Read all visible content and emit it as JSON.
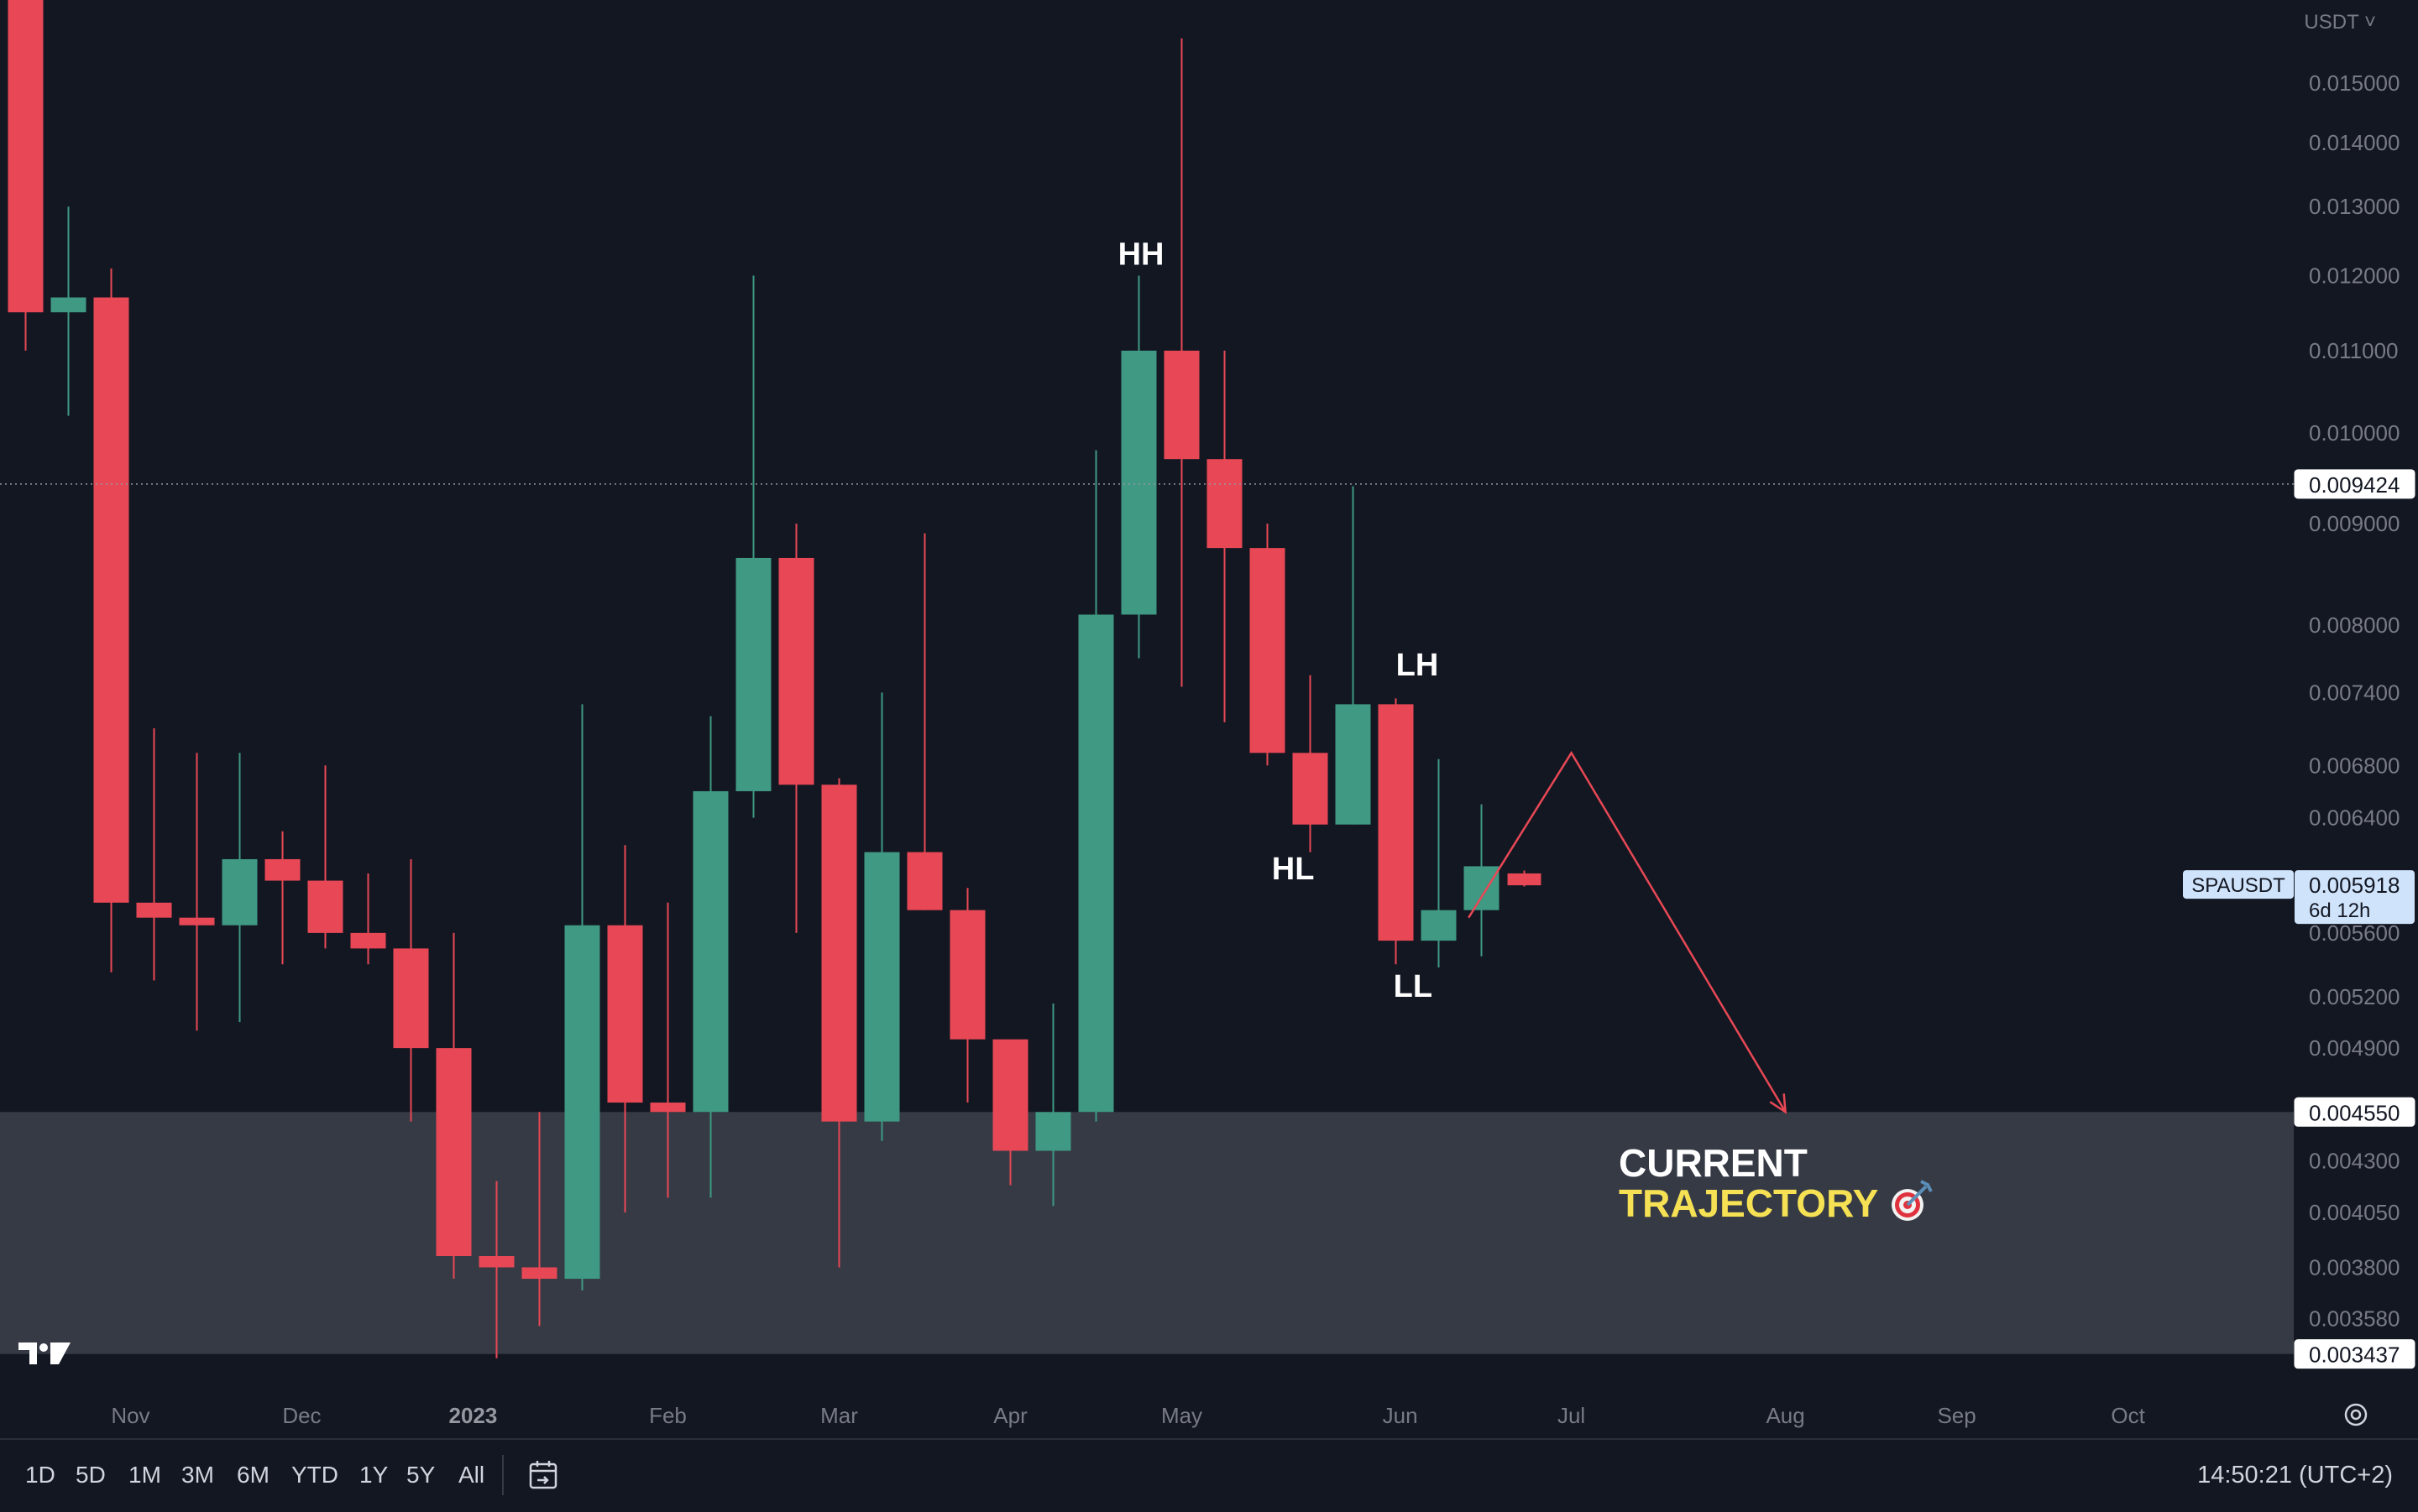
{
  "chart_data": {
    "type": "candlestick",
    "symbol": "SPAUSDT",
    "currency": "USDT",
    "timeframe": "1W",
    "y_scale": "log",
    "ylim": [
      0.00335,
      0.0162
    ],
    "y_ticks": [
      "0.015000",
      "0.014000",
      "0.013000",
      "0.012000",
      "0.011000",
      "0.010000",
      "0.009000",
      "0.008000",
      "0.007400",
      "0.006800",
      "0.006400",
      "0.005600",
      "0.005200",
      "0.004900",
      "0.004300",
      "0.004050",
      "0.003800",
      "0.003580"
    ],
    "x_ticks": [
      {
        "label": "Nov",
        "i": 2.45
      },
      {
        "label": "Dec",
        "i": 6.45
      },
      {
        "label": "2023",
        "i": 10.45,
        "bold": true
      },
      {
        "label": "Feb",
        "i": 15.0
      },
      {
        "label": "Mar",
        "i": 19.0
      },
      {
        "label": "Apr",
        "i": 23.0
      },
      {
        "label": "May",
        "i": 27.0
      },
      {
        "label": "Jun",
        "i": 32.1
      },
      {
        "label": "Jul",
        "i": 36.1
      },
      {
        "label": "Aug",
        "i": 41.1
      },
      {
        "label": "Sep",
        "i": 45.1
      },
      {
        "label": "Oct",
        "i": 49.1
      }
    ],
    "candles": [
      {
        "o": 0.02,
        "h": 0.021,
        "l": 0.011,
        "c": 0.0115
      },
      {
        "o": 0.0115,
        "h": 0.013,
        "l": 0.0102,
        "c": 0.0117
      },
      {
        "o": 0.0117,
        "h": 0.0121,
        "l": 0.00535,
        "c": 0.0058
      },
      {
        "o": 0.0058,
        "h": 0.0071,
        "l": 0.0053,
        "c": 0.0057
      },
      {
        "o": 0.0057,
        "h": 0.0069,
        "l": 0.005,
        "c": 0.00565
      },
      {
        "o": 0.00565,
        "h": 0.0069,
        "l": 0.00505,
        "c": 0.0061
      },
      {
        "o": 0.0061,
        "h": 0.0063,
        "l": 0.0054,
        "c": 0.00595
      },
      {
        "o": 0.00595,
        "h": 0.0068,
        "l": 0.0055,
        "c": 0.0056
      },
      {
        "o": 0.0056,
        "h": 0.006,
        "l": 0.0054,
        "c": 0.0055
      },
      {
        "o": 0.0055,
        "h": 0.0061,
        "l": 0.0045,
        "c": 0.0049
      },
      {
        "o": 0.0049,
        "h": 0.0056,
        "l": 0.00375,
        "c": 0.00385
      },
      {
        "o": 0.00385,
        "h": 0.0042,
        "l": 0.00342,
        "c": 0.0038
      },
      {
        "o": 0.0038,
        "h": 0.00455,
        "l": 0.00355,
        "c": 0.00375
      },
      {
        "o": 0.00375,
        "h": 0.0073,
        "l": 0.0037,
        "c": 0.00565
      },
      {
        "o": 0.00565,
        "h": 0.0062,
        "l": 0.00405,
        "c": 0.0046
      },
      {
        "o": 0.0046,
        "h": 0.0058,
        "l": 0.00412,
        "c": 0.00455
      },
      {
        "o": 0.00455,
        "h": 0.0072,
        "l": 0.00412,
        "c": 0.0066
      },
      {
        "o": 0.0066,
        "h": 0.012,
        "l": 0.0064,
        "c": 0.00865
      },
      {
        "o": 0.00865,
        "h": 0.009,
        "l": 0.0056,
        "c": 0.00665
      },
      {
        "o": 0.00665,
        "h": 0.0067,
        "l": 0.0038,
        "c": 0.0045
      },
      {
        "o": 0.0045,
        "h": 0.0074,
        "l": 0.0044,
        "c": 0.00615
      },
      {
        "o": 0.00615,
        "h": 0.0089,
        "l": 0.00575,
        "c": 0.00575
      },
      {
        "o": 0.00575,
        "h": 0.0059,
        "l": 0.0046,
        "c": 0.00495
      },
      {
        "o": 0.00495,
        "h": 0.0049,
        "l": 0.00418,
        "c": 0.00435
      },
      {
        "o": 0.00435,
        "h": 0.00516,
        "l": 0.00408,
        "c": 0.00455
      },
      {
        "o": 0.00455,
        "h": 0.0098,
        "l": 0.0045,
        "c": 0.0081
      },
      {
        "o": 0.0081,
        "h": 0.012,
        "l": 0.0077,
        "c": 0.011
      },
      {
        "o": 0.011,
        "h": 0.0158,
        "l": 0.00745,
        "c": 0.0097
      },
      {
        "o": 0.0097,
        "h": 0.011,
        "l": 0.00715,
        "c": 0.00875
      },
      {
        "o": 0.00875,
        "h": 0.009,
        "l": 0.0068,
        "c": 0.0069
      },
      {
        "o": 0.0069,
        "h": 0.00755,
        "l": 0.00615,
        "c": 0.00635
      },
      {
        "o": 0.00635,
        "h": 0.0094,
        "l": 0.00635,
        "c": 0.0073
      },
      {
        "o": 0.0073,
        "h": 0.00735,
        "l": 0.0054,
        "c": 0.00555
      },
      {
        "o": 0.00555,
        "h": 0.00685,
        "l": 0.00538,
        "c": 0.00575
      },
      {
        "o": 0.00575,
        "h": 0.0065,
        "l": 0.00545,
        "c": 0.00605
      },
      {
        "o": 0.006,
        "h": 0.00602,
        "l": 0.00591,
        "c": 0.005918
      }
    ],
    "zone": {
      "from": 0.003437,
      "to": 0.00455
    },
    "trajectory": [
      {
        "i": 33.7,
        "p": 0.0057
      },
      {
        "i": 36.1,
        "p": 0.0069
      },
      {
        "i": 41.1,
        "p": 0.00455
      }
    ],
    "markers": [
      {
        "text": "HH",
        "i": 26.05,
        "p": 0.01215
      },
      {
        "text": "LH",
        "i": 32.5,
        "p": 0.00755
      },
      {
        "text": "HL",
        "i": 29.6,
        "p": 0.00596
      },
      {
        "text": "LL",
        "i": 32.4,
        "p": 0.0052
      }
    ],
    "price_tags": [
      {
        "value": "0.009424",
        "p": 0.009424,
        "style": "plain",
        "dotted_line": true
      },
      {
        "value": "0.004550",
        "p": 0.00455,
        "style": "plain"
      },
      {
        "value": "0.003437",
        "p": 0.003437,
        "style": "plain"
      }
    ],
    "current_price": {
      "symbol": "SPAUSDT",
      "value": "0.005918",
      "countdown": "6d 12h",
      "p": 0.005918
    },
    "annotation": {
      "line1": "CURRENT",
      "line2": "TRAJECTORY",
      "line2_emoji": "🎯"
    },
    "colors": {
      "up": "#3f9983",
      "down": "#e84855",
      "background": "#131722",
      "zone": "#363a45",
      "text": "#d1d4dc",
      "axis_text": "#787b86",
      "yellow": "#f5e153",
      "tag_blue": "#cfe3fb"
    }
  },
  "toolbar": {
    "ranges": [
      "1D",
      "5D",
      "1M",
      "3M",
      "6M",
      "YTD",
      "1Y",
      "5Y",
      "All"
    ],
    "time": "14:50:21 (UTC+2)"
  }
}
